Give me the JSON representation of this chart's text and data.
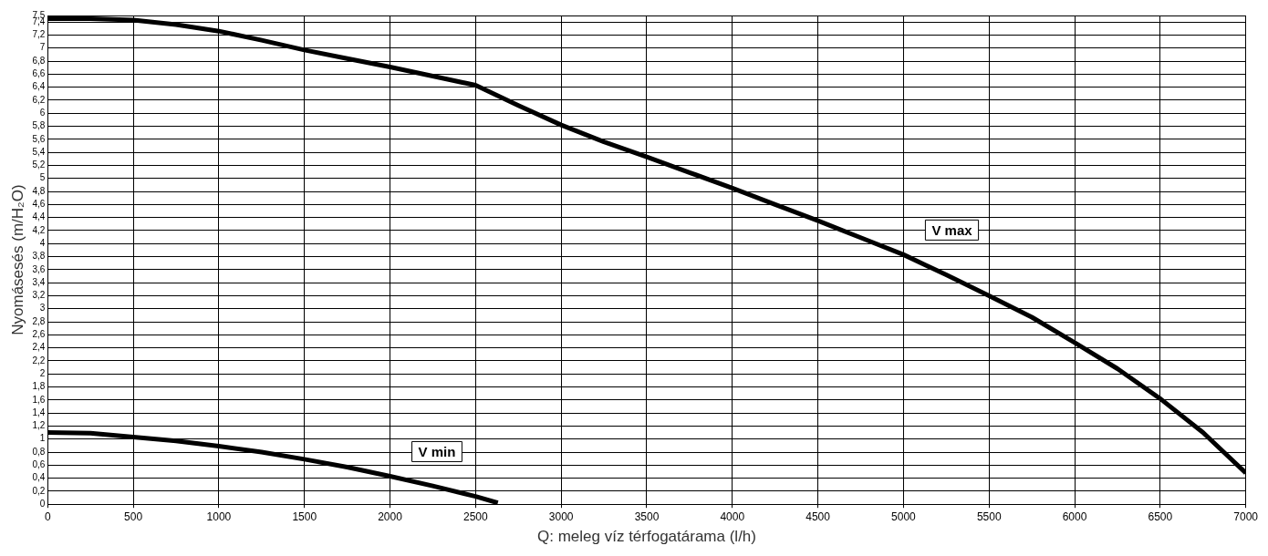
{
  "chart_data": {
    "type": "line",
    "xlabel": "Q: meleg víz térfogatárama (l/h)",
    "ylabel": "Nyomásesés (m/H₂O)",
    "xlim": [
      0,
      7000
    ],
    "xticks": [
      0,
      500,
      1000,
      1500,
      2000,
      2500,
      3000,
      3500,
      4000,
      4500,
      5000,
      5500,
      6000,
      6500,
      7000
    ],
    "ylim": [
      0,
      7.5
    ],
    "yticks": [
      0,
      {
        "value": 0.2,
        "label": "0,2"
      },
      {
        "value": 0.4,
        "label": "0,4"
      },
      {
        "value": 0.6,
        "label": "0,6"
      },
      {
        "value": 0.8,
        "label": "0,8"
      },
      1,
      {
        "value": 1.2,
        "label": "1,2"
      },
      {
        "value": 1.4,
        "label": "1,4"
      },
      {
        "value": 1.6,
        "label": "1,6"
      },
      {
        "value": 1.8,
        "label": "1,8"
      },
      2,
      {
        "value": 2.2,
        "label": "2,2"
      },
      {
        "value": 2.4,
        "label": "2,4"
      },
      {
        "value": 2.6,
        "label": "2,6"
      },
      {
        "value": 2.8,
        "label": "2,8"
      },
      3,
      {
        "value": 3.2,
        "label": "3,2"
      },
      {
        "value": 3.4,
        "label": "3,4"
      },
      {
        "value": 3.6,
        "label": "3,6"
      },
      {
        "value": 3.8,
        "label": "3,8"
      },
      4,
      {
        "value": 4.2,
        "label": "4,2"
      },
      {
        "value": 4.4,
        "label": "4,4"
      },
      {
        "value": 4.6,
        "label": "4,6"
      },
      {
        "value": 4.8,
        "label": "4,8"
      },
      5,
      {
        "value": 5.2,
        "label": "5,2"
      },
      {
        "value": 5.4,
        "label": "5,4"
      },
      {
        "value": 5.6,
        "label": "5,6"
      },
      {
        "value": 5.8,
        "label": "5,8"
      },
      6,
      {
        "value": 6.2,
        "label": "6,2"
      },
      {
        "value": 6.4,
        "label": "6,4"
      },
      {
        "value": 6.6,
        "label": "6,6"
      },
      {
        "value": 6.8,
        "label": "6,8"
      },
      7,
      {
        "value": 7.2,
        "label": "7,2"
      },
      {
        "value": 7.4,
        "label": "7,4"
      },
      {
        "value": 7.5,
        "label": "7,5"
      }
    ],
    "grid": true,
    "legend": false,
    "marker": "none",
    "line_style": "solid",
    "series": [
      {
        "name": "V max",
        "color": "#000000",
        "x": [
          0,
          250,
          500,
          750,
          1000,
          1250,
          1500,
          1750,
          2000,
          2250,
          2500,
          2750,
          3000,
          3250,
          3500,
          3750,
          4000,
          4250,
          4500,
          4750,
          5000,
          5250,
          5500,
          5750,
          6000,
          6250,
          6500,
          6750,
          7000
        ],
        "values": [
          7.45,
          7.45,
          7.43,
          7.36,
          7.26,
          7.12,
          6.97,
          6.84,
          6.71,
          6.57,
          6.43,
          6.12,
          5.82,
          5.56,
          5.33,
          5.09,
          4.85,
          4.6,
          4.35,
          4.09,
          3.83,
          3.52,
          3.2,
          2.87,
          2.48,
          2.08,
          1.62,
          1.1,
          0.48
        ]
      },
      {
        "name": "V min",
        "color": "#000000",
        "x": [
          0,
          250,
          500,
          750,
          1000,
          1250,
          1500,
          1750,
          2000,
          2250,
          2500,
          2630
        ],
        "values": [
          1.1,
          1.09,
          1.03,
          0.97,
          0.89,
          0.8,
          0.69,
          0.57,
          0.43,
          0.28,
          0.12,
          0.02
        ]
      }
    ]
  }
}
